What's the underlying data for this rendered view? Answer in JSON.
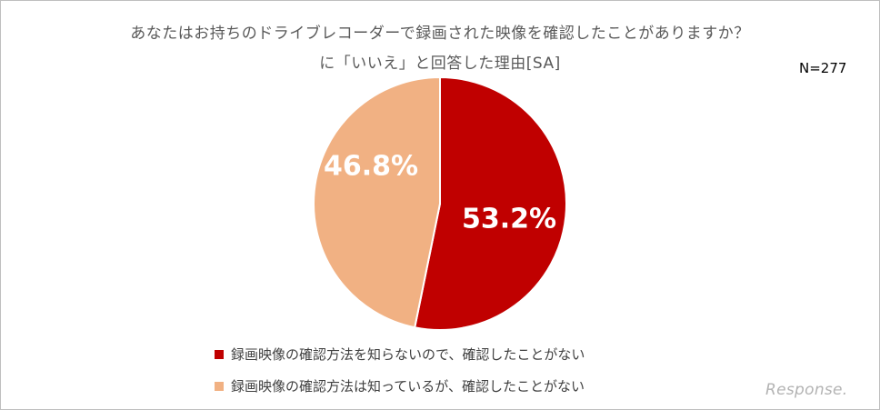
{
  "chart_data": {
    "type": "pie",
    "title_line1": "あなたはお持ちのドライブレコーダーで録画された映像を確認したことがありますか？",
    "title_line2": "に「いいえ」と回答した理由[SA]",
    "n_label": "N=277",
    "slices": [
      {
        "name": "録画映像の確認方法を知らないので、確認したことがない",
        "value": 53.2,
        "label": "53.2%",
        "color": "#c00000"
      },
      {
        "name": "録画映像の確認方法は知っているが、確認したことがない",
        "value": 46.8,
        "label": "46.8%",
        "color": "#f1b183"
      }
    ],
    "legend_position": "bottom"
  },
  "watermark": "Response."
}
